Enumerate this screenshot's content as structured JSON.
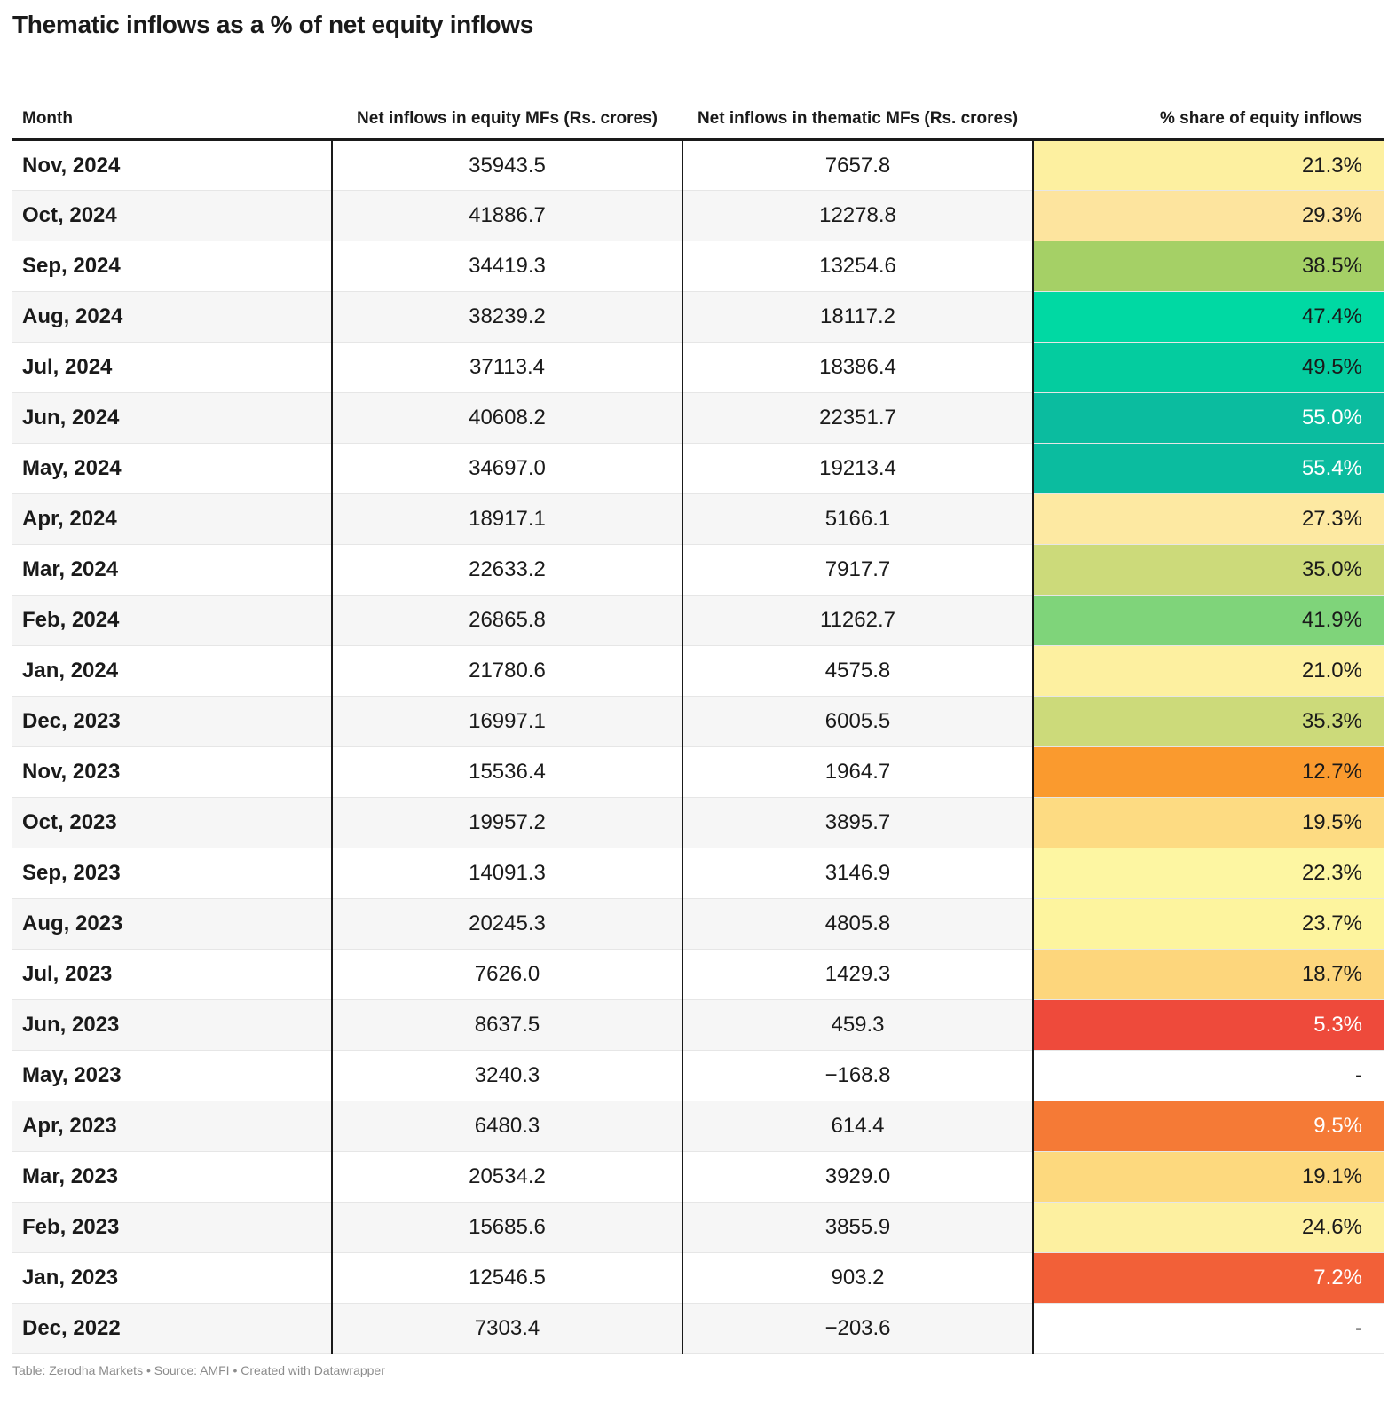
{
  "title": "Thematic inflows as a % of net equity inflows",
  "footer": "Table: Zerodha Markets • Source: AMFI • Created with Datawrapper",
  "chart_data": {
    "type": "table",
    "title": "Thematic inflows as a % of net equity inflows",
    "columns": [
      "Month",
      "Net inflows in equity MFs (Rs. crores)",
      "Net inflows in thematic MFs (Rs. crores)",
      "% share of equity inflows"
    ],
    "rows": [
      {
        "month": "Nov, 2024",
        "equity": "35943.5",
        "thematic": "7657.8",
        "share": "21.3%",
        "color": "#fdf0a0",
        "text_color": "#1a1a1a"
      },
      {
        "month": "Oct, 2024",
        "equity": "41886.7",
        "thematic": "12278.8",
        "share": "29.3%",
        "color": "#fde49e",
        "text_color": "#1a1a1a"
      },
      {
        "month": "Sep, 2024",
        "equity": "34419.3",
        "thematic": "13254.6",
        "share": "38.5%",
        "color": "#a5d066",
        "text_color": "#1a1a1a"
      },
      {
        "month": "Aug, 2024",
        "equity": "38239.2",
        "thematic": "18117.2",
        "share": "47.4%",
        "color": "#00d9a3",
        "text_color": "#1a1a1a"
      },
      {
        "month": "Jul, 2024",
        "equity": "37113.4",
        "thematic": "18386.4",
        "share": "49.5%",
        "color": "#04cc9f",
        "text_color": "#1a1a1a"
      },
      {
        "month": "Jun, 2024",
        "equity": "40608.2",
        "thematic": "22351.7",
        "share": "55.0%",
        "color": "#0bbc9f",
        "text_color": "#ffffff"
      },
      {
        "month": "May, 2024",
        "equity": "34697.0",
        "thematic": "19213.4",
        "share": "55.4%",
        "color": "#0bbc9f",
        "text_color": "#ffffff"
      },
      {
        "month": "Apr, 2024",
        "equity": "18917.1",
        "thematic": "5166.1",
        "share": "27.3%",
        "color": "#fde9a2",
        "text_color": "#1a1a1a"
      },
      {
        "month": "Mar, 2024",
        "equity": "22633.2",
        "thematic": "7917.7",
        "share": "35.0%",
        "color": "#ccda7a",
        "text_color": "#1a1a1a"
      },
      {
        "month": "Feb, 2024",
        "equity": "26865.8",
        "thematic": "11262.7",
        "share": "41.9%",
        "color": "#7fd47a",
        "text_color": "#1a1a1a"
      },
      {
        "month": "Jan, 2024",
        "equity": "21780.6",
        "thematic": "4575.8",
        "share": "21.0%",
        "color": "#fdf0a0",
        "text_color": "#1a1a1a"
      },
      {
        "month": "Dec, 2023",
        "equity": "16997.1",
        "thematic": "6005.5",
        "share": "35.3%",
        "color": "#ccda7a",
        "text_color": "#1a1a1a"
      },
      {
        "month": "Nov, 2023",
        "equity": "15536.4",
        "thematic": "1964.7",
        "share": "12.7%",
        "color": "#fa9a2e",
        "text_color": "#1a1a1a"
      },
      {
        "month": "Oct, 2023",
        "equity": "19957.2",
        "thematic": "3895.7",
        "share": "19.5%",
        "color": "#fddb82",
        "text_color": "#1a1a1a"
      },
      {
        "month": "Sep, 2023",
        "equity": "14091.3",
        "thematic": "3146.9",
        "share": "22.3%",
        "color": "#fdf6a2",
        "text_color": "#1a1a1a"
      },
      {
        "month": "Aug, 2023",
        "equity": "20245.3",
        "thematic": "4805.8",
        "share": "23.7%",
        "color": "#fdf49e",
        "text_color": "#1a1a1a"
      },
      {
        "month": "Jul, 2023",
        "equity": "7626.0",
        "thematic": "1429.3",
        "share": "18.7%",
        "color": "#fdd67c",
        "text_color": "#1a1a1a"
      },
      {
        "month": "Jun, 2023",
        "equity": "8637.5",
        "thematic": "459.3",
        "share": "5.3%",
        "color": "#ee4a3b",
        "text_color": "#ffffff"
      },
      {
        "month": "May, 2023",
        "equity": "3240.3",
        "thematic": "−168.8",
        "share": "-",
        "color": "#ffffff",
        "text_color": "#1a1a1a"
      },
      {
        "month": "Apr, 2023",
        "equity": "6480.3",
        "thematic": "614.4",
        "share": "9.5%",
        "color": "#f57a36",
        "text_color": "#ffffff"
      },
      {
        "month": "Mar, 2023",
        "equity": "20534.2",
        "thematic": "3929.0",
        "share": "19.1%",
        "color": "#fdd97e",
        "text_color": "#1a1a1a"
      },
      {
        "month": "Feb, 2023",
        "equity": "15685.6",
        "thematic": "3855.9",
        "share": "24.6%",
        "color": "#fdf0a0",
        "text_color": "#1a1a1a"
      },
      {
        "month": "Jan, 2023",
        "equity": "12546.5",
        "thematic": "903.2",
        "share": "7.2%",
        "color": "#f26038",
        "text_color": "#ffffff"
      },
      {
        "month": "Dec, 2022",
        "equity": "7303.4",
        "thematic": "−203.6",
        "share": "-",
        "color": "#ffffff",
        "text_color": "#1a1a1a"
      }
    ]
  }
}
